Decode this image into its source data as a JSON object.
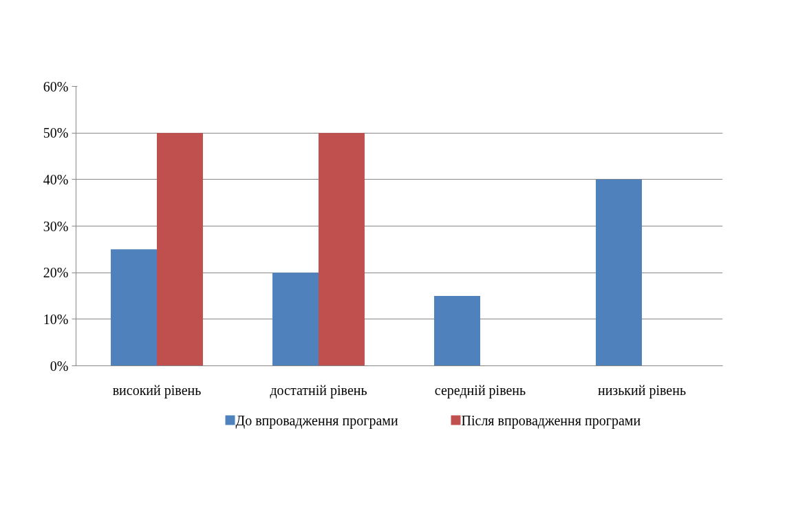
{
  "chart_data": {
    "type": "bar",
    "categories": [
      "високий рівень",
      "достатній рівень",
      "середній рівень",
      "низький рівень"
    ],
    "series": [
      {
        "name": "До впровадження програми",
        "color": "#4f81bd",
        "values": [
          25,
          20,
          15,
          40
        ]
      },
      {
        "name": "Після впровадження програми",
        "color": "#c0504d",
        "values": [
          50,
          50,
          0,
          0
        ]
      }
    ],
    "ylim": [
      0,
      60
    ],
    "yticks": [
      {
        "value": 0,
        "label": "0%"
      },
      {
        "value": 10,
        "label": "10%"
      },
      {
        "value": 20,
        "label": "20%"
      },
      {
        "value": 30,
        "label": "30%"
      },
      {
        "value": 40,
        "label": "40%"
      },
      {
        "value": 50,
        "label": "50%"
      },
      {
        "value": 60,
        "label": "60%"
      }
    ],
    "grid": "y",
    "legend": "bottom"
  }
}
